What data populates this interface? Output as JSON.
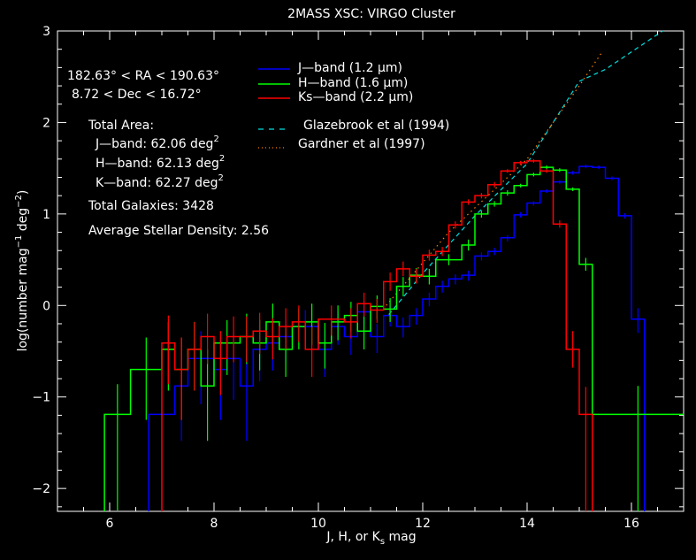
{
  "chart_data": {
    "type": "line",
    "subtype": "step histogram with error bars",
    "title": "2MASS XSC: VIRGO Cluster",
    "xlabel_parts": [
      "J, H, or K",
      "s",
      " mag"
    ],
    "ylabel_parts": [
      "log(number mag",
      "−1",
      " deg",
      "−2",
      ")"
    ],
    "xlim": [
      5,
      17
    ],
    "ylim": [
      -2.25,
      3
    ],
    "x_ticks": [
      "6",
      "8",
      "10",
      "12",
      "14",
      "16"
    ],
    "x_tick_values": [
      6,
      8,
      10,
      12,
      14,
      16
    ],
    "y_ticks": [
      "−2",
      "−1",
      "0",
      "1",
      "2",
      "3"
    ],
    "y_tick_values": [
      -2,
      -1,
      0,
      1,
      2,
      3
    ],
    "grid": false,
    "legend_position": "top-center",
    "bin_format": "[bin_low, bin_high, log_count, err_up, err_down]",
    "series": [
      {
        "name": "J-band (1.2 μm)",
        "color": "#0000ff",
        "bins": [
          [
            6.75,
            7.25,
            -1.19,
            0.35,
            1.2
          ],
          [
            7.25,
            7.5,
            -0.88,
            0.4,
            0.6
          ],
          [
            7.5,
            8.0,
            -0.58,
            0.3,
            0.5
          ],
          [
            8.0,
            8.25,
            -0.7,
            0.35,
            0.55
          ],
          [
            8.25,
            8.5,
            -0.58,
            0.3,
            0.45
          ],
          [
            8.5,
            8.75,
            -0.88,
            0.4,
            0.6
          ],
          [
            8.75,
            9.0,
            -0.48,
            0.25,
            0.35
          ],
          [
            9.0,
            9.25,
            -0.41,
            0.22,
            0.3
          ],
          [
            9.25,
            9.5,
            -0.34,
            0.2,
            0.28
          ],
          [
            9.5,
            10.0,
            -0.23,
            0.18,
            0.25
          ],
          [
            10.0,
            10.25,
            -0.48,
            0.22,
            0.3
          ],
          [
            10.25,
            10.5,
            -0.23,
            0.16,
            0.2
          ],
          [
            10.5,
            10.75,
            -0.34,
            0.16,
            0.2
          ],
          [
            10.75,
            11.0,
            -0.07,
            0.12,
            0.15
          ],
          [
            11.0,
            11.25,
            -0.34,
            0.14,
            0.18
          ],
          [
            11.25,
            11.5,
            -0.11,
            0.1,
            0.12
          ],
          [
            11.5,
            11.75,
            -0.23,
            0.1,
            0.12
          ],
          [
            11.75,
            12.0,
            -0.11,
            0.08,
            0.1
          ],
          [
            12.0,
            12.25,
            0.07,
            0.07,
            0.08
          ],
          [
            12.25,
            12.5,
            0.21,
            0.06,
            0.07
          ],
          [
            12.5,
            12.75,
            0.29,
            0.05,
            0.06
          ],
          [
            12.75,
            13.0,
            0.33,
            0.05,
            0.06
          ],
          [
            13.0,
            13.25,
            0.54,
            0.04,
            0.05
          ],
          [
            13.25,
            13.5,
            0.59,
            0.04,
            0.04
          ],
          [
            13.5,
            13.75,
            0.74,
            0.03,
            0.04
          ],
          [
            13.75,
            14.0,
            0.99,
            0.03,
            0.03
          ],
          [
            14.0,
            14.25,
            1.12,
            0.02,
            0.03
          ],
          [
            14.25,
            14.5,
            1.25,
            0.02,
            0.02
          ],
          [
            14.5,
            14.75,
            1.35,
            0.02,
            0.02
          ],
          [
            14.75,
            15.0,
            1.45,
            0.02,
            0.02
          ],
          [
            15.0,
            15.25,
            1.52,
            0.02,
            0.02
          ],
          [
            15.25,
            15.5,
            1.51,
            0.02,
            0.02
          ],
          [
            15.5,
            15.75,
            1.39,
            0.02,
            0.02
          ],
          [
            15.75,
            16.0,
            0.98,
            0.03,
            0.03
          ],
          [
            16.0,
            16.25,
            -0.15,
            0.12,
            0.15
          ]
        ]
      },
      {
        "name": "H-band (1.6 μm)",
        "color": "#00ff00",
        "bins": [
          [
            5.9,
            6.4,
            -1.19,
            0.33,
            1.05
          ],
          [
            6.4,
            7.0,
            -0.7,
            0.35,
            0.55
          ],
          [
            7.0,
            7.25,
            -0.48,
            0.3,
            0.45
          ],
          [
            7.25,
            7.5,
            -0.7,
            0.35,
            0.55
          ],
          [
            7.5,
            7.75,
            -0.48,
            0.3,
            0.45
          ],
          [
            7.75,
            8.0,
            -0.88,
            0.4,
            0.6
          ],
          [
            8.0,
            8.5,
            -0.41,
            0.25,
            0.35
          ],
          [
            8.5,
            8.75,
            -0.34,
            0.25,
            0.3
          ],
          [
            8.75,
            9.0,
            -0.41,
            0.25,
            0.3
          ],
          [
            9.0,
            9.25,
            -0.18,
            0.2,
            0.25
          ],
          [
            9.25,
            9.5,
            -0.48,
            0.25,
            0.3
          ],
          [
            9.5,
            9.75,
            -0.23,
            0.2,
            0.25
          ],
          [
            9.75,
            10.0,
            -0.18,
            0.2,
            0.25
          ],
          [
            10.0,
            10.25,
            -0.41,
            0.22,
            0.28
          ],
          [
            10.25,
            10.5,
            -0.18,
            0.18,
            0.2
          ],
          [
            10.5,
            10.75,
            -0.11,
            0.15,
            0.18
          ],
          [
            10.75,
            11.0,
            -0.28,
            0.16,
            0.2
          ],
          [
            11.0,
            11.25,
            -0.01,
            0.12,
            0.14
          ],
          [
            11.25,
            11.5,
            -0.04,
            0.12,
            0.14
          ],
          [
            11.5,
            11.75,
            0.21,
            0.1,
            0.11
          ],
          [
            11.75,
            12.0,
            0.33,
            0.08,
            0.09
          ],
          [
            12.0,
            12.25,
            0.32,
            0.08,
            0.09
          ],
          [
            12.25,
            12.75,
            0.5,
            0.06,
            0.06
          ],
          [
            12.75,
            13.0,
            0.66,
            0.06,
            0.06
          ],
          [
            13.0,
            13.25,
            1.0,
            0.04,
            0.04
          ],
          [
            13.25,
            13.5,
            1.11,
            0.03,
            0.03
          ],
          [
            13.5,
            13.75,
            1.23,
            0.03,
            0.03
          ],
          [
            13.75,
            14.0,
            1.31,
            0.02,
            0.02
          ],
          [
            14.0,
            14.25,
            1.43,
            0.02,
            0.02
          ],
          [
            14.25,
            14.5,
            1.51,
            0.02,
            0.02
          ],
          [
            14.5,
            14.75,
            1.48,
            0.02,
            0.02
          ],
          [
            14.75,
            15.0,
            1.27,
            0.02,
            0.02
          ],
          [
            15.0,
            15.25,
            0.45,
            0.07,
            0.07
          ],
          [
            15.25,
            17.0,
            -1.19,
            0.31,
            1.1
          ]
        ]
      },
      {
        "name": "Ks-band (2.2 μm)",
        "color": "#ff0000",
        "bins": [
          [
            7.0,
            7.25,
            -0.41,
            0.3,
            0.45
          ],
          [
            7.25,
            7.5,
            -0.7,
            0.35,
            0.55
          ],
          [
            7.5,
            7.75,
            -0.48,
            0.3,
            0.45
          ],
          [
            7.75,
            8.0,
            -0.34,
            0.25,
            0.3
          ],
          [
            8.0,
            8.25,
            -0.58,
            0.3,
            0.4
          ],
          [
            8.25,
            8.5,
            -0.34,
            0.22,
            0.28
          ],
          [
            8.5,
            8.75,
            -0.34,
            0.22,
            0.28
          ],
          [
            8.75,
            9.0,
            -0.28,
            0.2,
            0.25
          ],
          [
            9.0,
            9.25,
            -0.34,
            0.2,
            0.25
          ],
          [
            9.25,
            9.5,
            -0.23,
            0.2,
            0.25
          ],
          [
            9.5,
            9.75,
            -0.18,
            0.18,
            0.22
          ],
          [
            9.75,
            10.0,
            -0.48,
            0.25,
            0.3
          ],
          [
            10.0,
            10.5,
            -0.15,
            0.15,
            0.18
          ],
          [
            10.5,
            10.75,
            -0.18,
            0.15,
            0.18
          ],
          [
            10.75,
            11.0,
            0.02,
            0.12,
            0.14
          ],
          [
            11.0,
            11.25,
            -0.05,
            0.12,
            0.14
          ],
          [
            11.25,
            11.5,
            0.26,
            0.1,
            0.1
          ],
          [
            11.5,
            11.75,
            0.4,
            0.08,
            0.08
          ],
          [
            11.75,
            12.0,
            0.32,
            0.08,
            0.08
          ],
          [
            12.0,
            12.25,
            0.55,
            0.06,
            0.06
          ],
          [
            12.25,
            12.5,
            0.59,
            0.05,
            0.05
          ],
          [
            12.5,
            12.75,
            0.88,
            0.04,
            0.04
          ],
          [
            12.75,
            13.0,
            1.13,
            0.03,
            0.03
          ],
          [
            13.0,
            13.25,
            1.2,
            0.03,
            0.03
          ],
          [
            13.25,
            13.5,
            1.32,
            0.03,
            0.03
          ],
          [
            13.5,
            13.75,
            1.47,
            0.02,
            0.02
          ],
          [
            13.75,
            14.0,
            1.56,
            0.02,
            0.02
          ],
          [
            14.0,
            14.25,
            1.58,
            0.02,
            0.02
          ],
          [
            14.25,
            14.5,
            1.47,
            0.02,
            0.02
          ],
          [
            14.5,
            14.75,
            0.89,
            0.04,
            0.04
          ],
          [
            14.75,
            15.0,
            -0.48,
            0.2,
            0.2
          ],
          [
            15.0,
            15.25,
            -1.19,
            0.3,
            1.1
          ]
        ]
      }
    ],
    "models": [
      {
        "name": "Glazebrook et al (1994)",
        "color": "#00e0e0",
        "style": "dashed",
        "x": [
          11.35,
          12.0,
          13.0,
          14.0,
          15.0,
          15.5,
          16.6
        ],
        "y": [
          -0.1,
          0.35,
          0.98,
          1.55,
          2.45,
          2.58,
          3.0
        ]
      },
      {
        "name": "Gardner et al (1997)",
        "color": "#ff8000",
        "style": "dotted",
        "x": [
          11.3,
          12.5,
          14.0,
          15.0,
          15.45
        ],
        "y": [
          0.0,
          0.8,
          1.6,
          2.4,
          2.78
        ]
      }
    ]
  },
  "info": {
    "ra_range": "182.63° < RA < 190.63°",
    "dec_range": "8.72 < Dec < 16.72°",
    "total_area_label": "Total Area:",
    "areas": [
      {
        "label": "J—band: 62.06 deg",
        "sup": "2"
      },
      {
        "label": "H—band: 62.13 deg",
        "sup": "2"
      },
      {
        "label": "K—band: 62.27 deg",
        "sup": "2"
      }
    ],
    "total_galaxies": "Total Galaxies: 3428",
    "stellar_density": "Average Stellar Density:  2.56"
  },
  "legend": {
    "items": [
      {
        "label": "J—band (1.2 μm)",
        "color": "#0000ff",
        "style": "solid"
      },
      {
        "label": "H—band (1.6 μm)",
        "color": "#00ff00",
        "style": "solid"
      },
      {
        "label": "Ks—band (2.2 μm)",
        "color": "#ff0000",
        "style": "solid"
      },
      {
        "label": "Glazebrook et al (1994)",
        "color": "#00e0e0",
        "style": "dashed"
      },
      {
        "label": "Gardner et al (1997)",
        "color": "#ff8000",
        "style": "dotted"
      }
    ]
  }
}
